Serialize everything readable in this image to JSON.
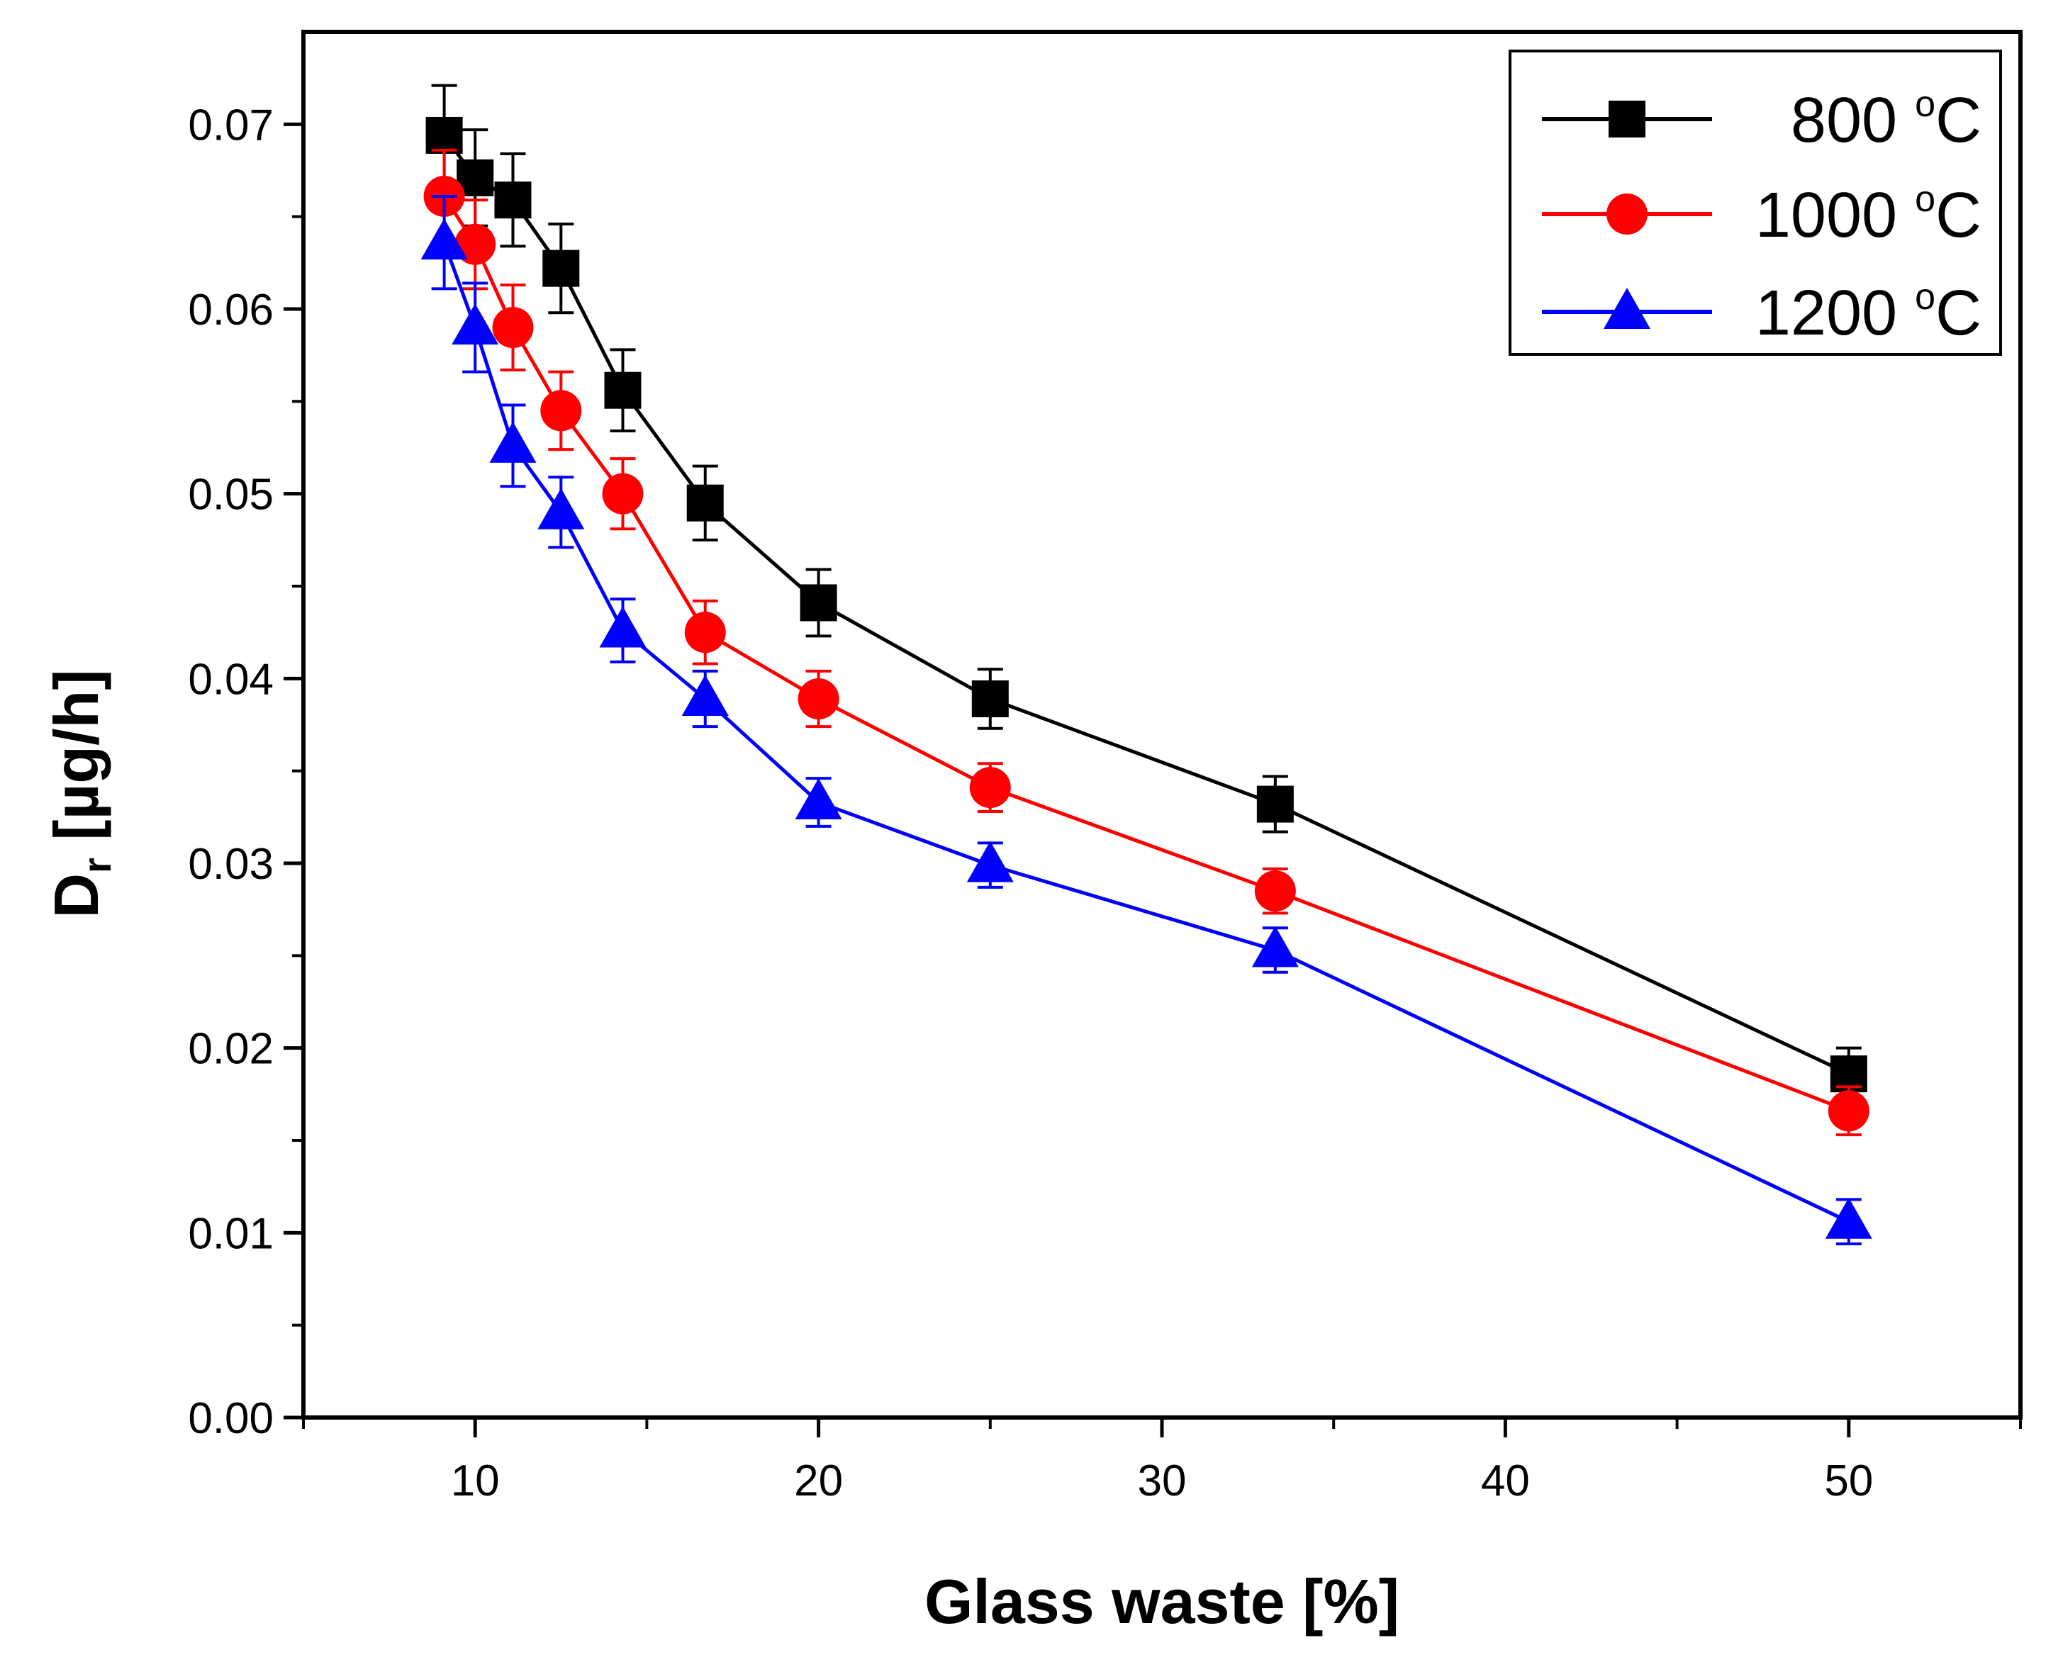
{
  "chart_data": {
    "type": "line",
    "title": "",
    "xlabel": "Glass waste [%]",
    "ylabel_main": "D",
    "ylabel_sub": "r",
    "ylabel_rest": " [µg/h]",
    "xlim": [
      5,
      55
    ],
    "ylim": [
      0,
      0.075
    ],
    "x_ticks": [
      10,
      20,
      30,
      40,
      50
    ],
    "x_tick_labels": [
      "10",
      "20",
      "30",
      "40",
      "50"
    ],
    "y_ticks": [
      0,
      0.01,
      0.02,
      0.03,
      0.04,
      0.05,
      0.06,
      0.07
    ],
    "y_tick_labels": [
      "0.00",
      "0.01",
      "0.02",
      "0.03",
      "0.04",
      "0.05",
      "0.06",
      "0.07"
    ],
    "grid": false,
    "legend_position": "top-right",
    "x": [
      9.1,
      10,
      11.1,
      12.5,
      14.3,
      16.7,
      20,
      25,
      33.3,
      50
    ],
    "series": [
      {
        "name": "800 °C",
        "label_value": "800",
        "unit_degree": "o",
        "unit_letter": "C",
        "color": "#000000",
        "marker": "square",
        "values": [
          0.0694,
          0.0671,
          0.0659,
          0.0622,
          0.0556,
          0.0495,
          0.0441,
          0.0389,
          0.0332,
          0.0186
        ],
        "errors": [
          0.0027,
          0.0026,
          0.0025,
          0.0024,
          0.0022,
          0.002,
          0.0018,
          0.0016,
          0.0015,
          0.0014
        ]
      },
      {
        "name": "1000 °C",
        "label_value": "1000",
        "unit_degree": "o",
        "unit_letter": "C",
        "color": "#ff0000",
        "marker": "circle",
        "values": [
          0.0661,
          0.0635,
          0.059,
          0.0545,
          0.05,
          0.0425,
          0.0389,
          0.0341,
          0.0285,
          0.0166
        ],
        "errors": [
          0.0025,
          0.0024,
          0.0023,
          0.0021,
          0.0019,
          0.0017,
          0.0015,
          0.0013,
          0.0012,
          0.0013
        ]
      },
      {
        "name": "1200 °C",
        "label_value": "1200",
        "unit_degree": "o",
        "unit_letter": "C",
        "color": "#0000ff",
        "marker": "triangle",
        "values": [
          0.0636,
          0.059,
          0.0526,
          0.049,
          0.0426,
          0.0389,
          0.0333,
          0.0299,
          0.0253,
          0.0106
        ],
        "errors": [
          0.0025,
          0.0024,
          0.0022,
          0.0019,
          0.0017,
          0.0015,
          0.0013,
          0.0012,
          0.0012,
          0.0012
        ]
      }
    ]
  }
}
